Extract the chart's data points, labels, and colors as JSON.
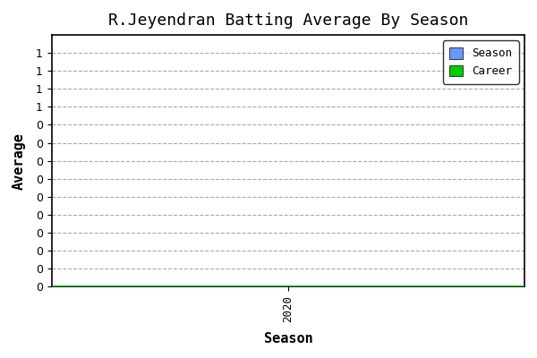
{
  "title": "R.Jeyendran Batting Average By Season",
  "xlabel": "Season",
  "ylabel": "Average",
  "seasons": [
    2020
  ],
  "season_avg": [
    0.0
  ],
  "career_avg": 0.0,
  "ylim": [
    0,
    1.4
  ],
  "ytick_values": [
    0.0,
    0.1,
    0.2,
    0.3,
    0.4,
    0.5,
    0.6,
    0.7,
    0.8,
    0.9,
    1.0,
    1.1,
    1.2,
    1.3
  ],
  "season_color": "#6699FF",
  "career_color": "#00CC00",
  "bg_color": "#FFFFFF",
  "plot_bg_color": "#FFFFFF",
  "grid_color": "#AAAAAA",
  "title_fontsize": 13,
  "label_fontsize": 11,
  "tick_fontsize": 9,
  "font_family": "monospace"
}
